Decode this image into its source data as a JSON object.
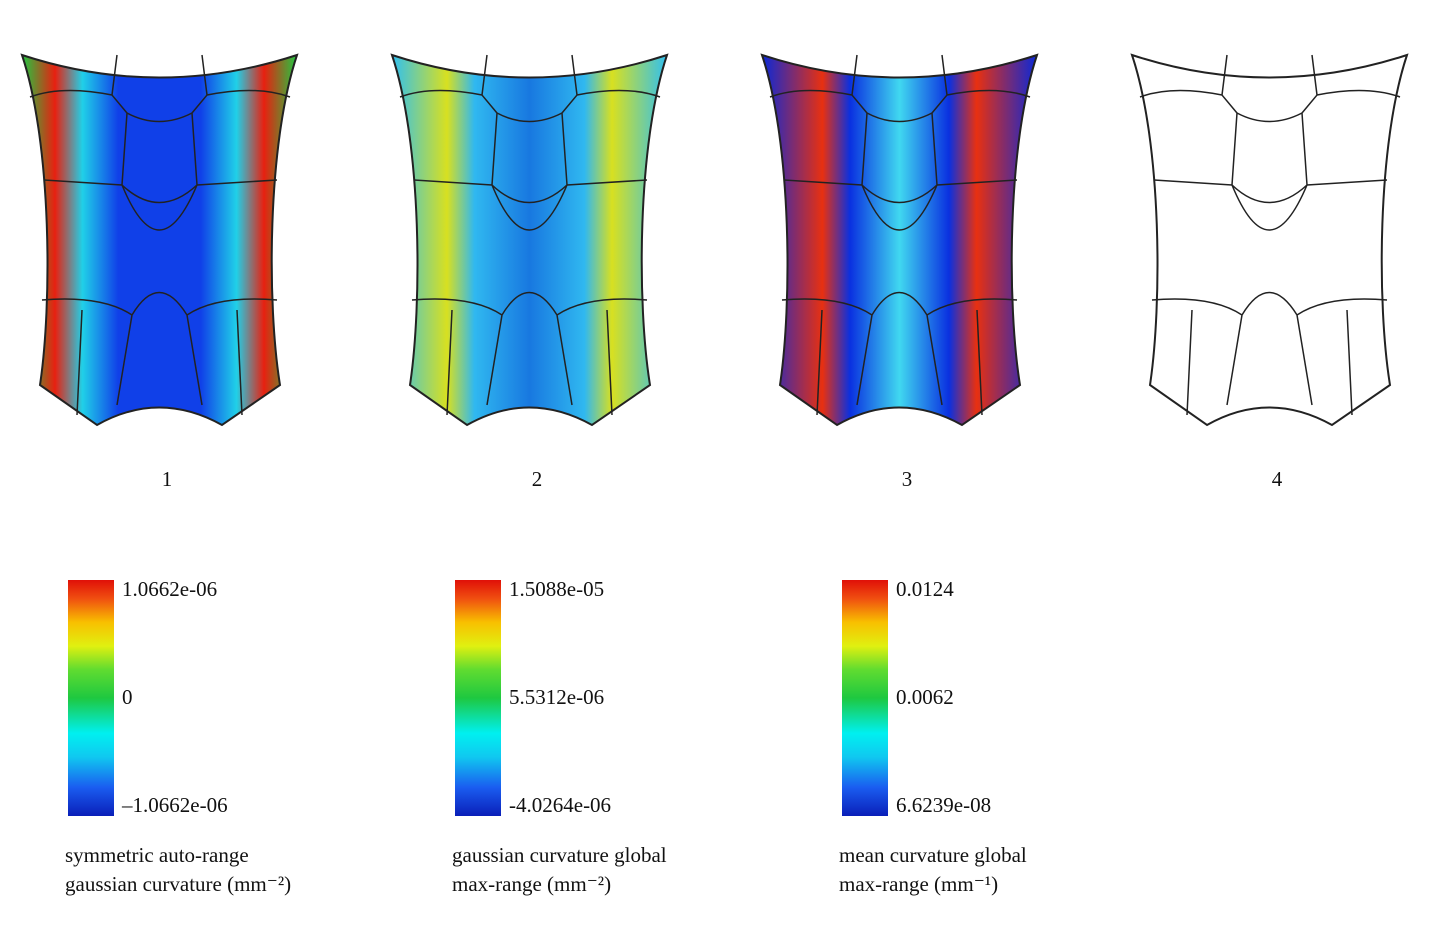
{
  "panels": [
    {
      "label": "1",
      "colorbar": {
        "max": "1.0662e-06",
        "mid": "0",
        "min": "–1.0662e-06",
        "caption": [
          "symmetric auto-range",
          "gaussian curvature (mm⁻²)"
        ]
      }
    },
    {
      "label": "2",
      "colorbar": {
        "max": "1.5088e-05",
        "mid": "5.5312e-06",
        "min": "-4.0264e-06",
        "caption": [
          "gaussian curvature global",
          "max-range (mm⁻²)"
        ]
      }
    },
    {
      "label": "3",
      "colorbar": {
        "max": "0.0124",
        "mid": "0.0062",
        "min": "6.6239e-08",
        "caption": [
          "mean curvature global",
          "max-range (mm⁻¹)"
        ]
      }
    },
    {
      "label": "4"
    }
  ]
}
